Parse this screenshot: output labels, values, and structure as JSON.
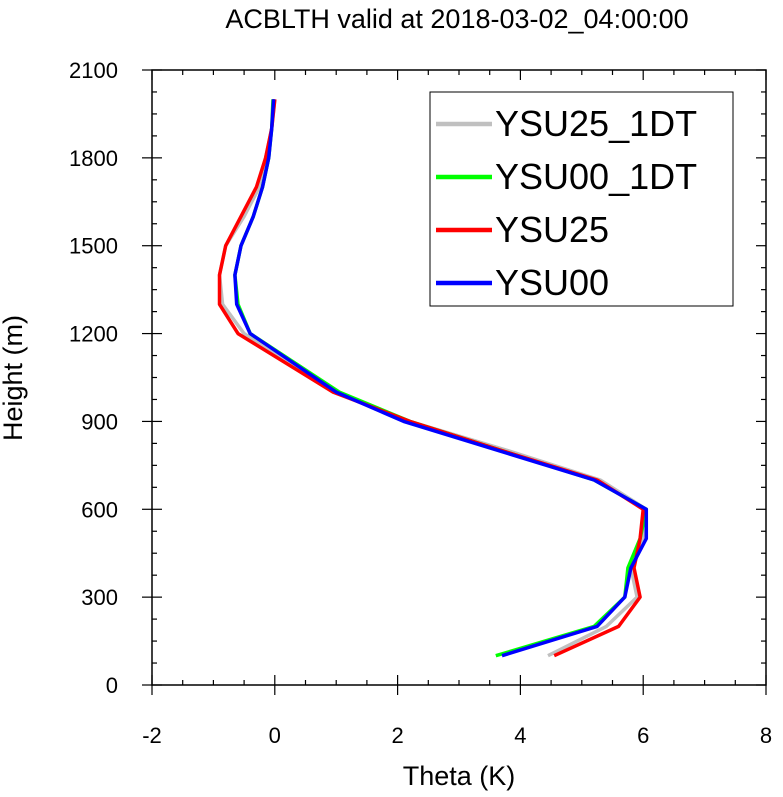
{
  "chart_data": {
    "type": "line",
    "title": "ACBLTH valid at 2018-03-02_04:00:00",
    "xlabel": "Theta (K)",
    "ylabel": "Height (m)",
    "xlim": [
      -2,
      8
    ],
    "ylim": [
      0,
      2100
    ],
    "xticks": [
      -2,
      0,
      2,
      4,
      6,
      8
    ],
    "yticks": [
      0,
      300,
      600,
      900,
      1200,
      1500,
      1800,
      2100
    ],
    "xtick_labels": [
      "-2",
      "0",
      "2",
      "4",
      "6",
      "8"
    ],
    "ytick_labels": [
      "0",
      "300",
      "600",
      "900",
      "1200",
      "1500",
      "1800",
      "2100"
    ],
    "grid": false,
    "legend_position": "top-right",
    "series": [
      {
        "name": "YSU25_1DT",
        "color": "#c0c0c0",
        "points": [
          [
            4.45,
            100
          ],
          [
            5.4,
            200
          ],
          [
            5.9,
            300
          ],
          [
            5.8,
            400
          ],
          [
            6.0,
            500
          ],
          [
            6.05,
            600
          ],
          [
            5.3,
            700
          ],
          [
            3.8,
            800
          ],
          [
            2.2,
            900
          ],
          [
            1.0,
            1000
          ],
          [
            -0.5,
            1200
          ],
          [
            -0.85,
            1300
          ],
          [
            -0.9,
            1400
          ],
          [
            -0.8,
            1500
          ],
          [
            -0.5,
            1600
          ],
          [
            -0.25,
            1700
          ],
          [
            -0.15,
            1800
          ],
          [
            -0.05,
            1900
          ],
          [
            0.0,
            2000
          ]
        ]
      },
      {
        "name": "YSU00_1DT",
        "color": "#00ff00",
        "points": [
          [
            3.6,
            100
          ],
          [
            5.2,
            200
          ],
          [
            5.7,
            300
          ],
          [
            5.75,
            400
          ],
          [
            5.95,
            500
          ],
          [
            6.05,
            600
          ],
          [
            5.2,
            700
          ],
          [
            3.7,
            800
          ],
          [
            2.2,
            900
          ],
          [
            1.05,
            1000
          ],
          [
            -0.4,
            1200
          ],
          [
            -0.6,
            1300
          ],
          [
            -0.65,
            1400
          ],
          [
            -0.55,
            1500
          ],
          [
            -0.35,
            1600
          ],
          [
            -0.2,
            1700
          ],
          [
            -0.1,
            1800
          ],
          [
            -0.05,
            1900
          ],
          [
            -0.03,
            2000
          ]
        ]
      },
      {
        "name": "YSU25",
        "color": "#ff0000",
        "points": [
          [
            4.55,
            100
          ],
          [
            5.6,
            200
          ],
          [
            5.95,
            300
          ],
          [
            5.85,
            400
          ],
          [
            5.95,
            500
          ],
          [
            6.0,
            600
          ],
          [
            5.25,
            700
          ],
          [
            3.7,
            800
          ],
          [
            2.2,
            900
          ],
          [
            0.95,
            1000
          ],
          [
            -0.6,
            1200
          ],
          [
            -0.9,
            1300
          ],
          [
            -0.9,
            1400
          ],
          [
            -0.8,
            1500
          ],
          [
            -0.55,
            1600
          ],
          [
            -0.3,
            1700
          ],
          [
            -0.15,
            1800
          ],
          [
            -0.05,
            1900
          ],
          [
            0.0,
            2000
          ]
        ]
      },
      {
        "name": "YSU00",
        "color": "#0000ff",
        "points": [
          [
            3.7,
            100
          ],
          [
            5.25,
            200
          ],
          [
            5.7,
            300
          ],
          [
            5.8,
            400
          ],
          [
            6.05,
            500
          ],
          [
            6.05,
            600
          ],
          [
            5.2,
            700
          ],
          [
            3.65,
            800
          ],
          [
            2.1,
            900
          ],
          [
            1.0,
            1000
          ],
          [
            -0.4,
            1200
          ],
          [
            -0.62,
            1300
          ],
          [
            -0.65,
            1400
          ],
          [
            -0.55,
            1500
          ],
          [
            -0.35,
            1600
          ],
          [
            -0.2,
            1700
          ],
          [
            -0.1,
            1800
          ],
          [
            -0.05,
            1900
          ],
          [
            -0.02,
            2000
          ]
        ]
      }
    ]
  }
}
